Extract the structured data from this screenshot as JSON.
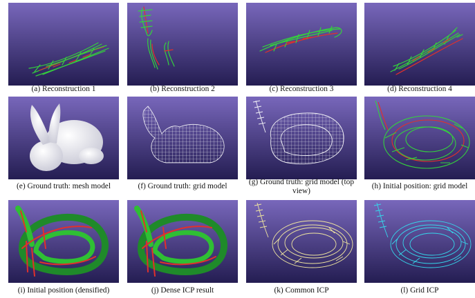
{
  "figure": {
    "panels": [
      {
        "caption": "(a) Reconstruction 1",
        "content": "reconstruction-green-red-grid"
      },
      {
        "caption": "(b) Reconstruction 2",
        "content": "reconstruction-green-red-grid"
      },
      {
        "caption": "(c) Reconstruction 3",
        "content": "reconstruction-green-red-grid"
      },
      {
        "caption": "(d) Reconstruction 4",
        "content": "reconstruction-green-red-grid"
      },
      {
        "caption": "(e) Ground truth: mesh model",
        "content": "white-bunny-mesh"
      },
      {
        "caption": "(f) Ground truth: grid model",
        "content": "white-bunny-grid"
      },
      {
        "caption": "(g) Ground truth: grid model (top view)",
        "content": "white-bunny-grid-top"
      },
      {
        "caption": "(h) Initial position: grid model",
        "content": "green-red-grid-initial"
      },
      {
        "caption": "(i) Initial position (densified)",
        "content": "dense-green-red"
      },
      {
        "caption": "(j) Dense ICP result",
        "content": "dense-green-red"
      },
      {
        "caption": "(k) Common ICP",
        "content": "yellow-grid-result"
      },
      {
        "caption": "(l) Grid ICP",
        "content": "cyan-grid-result"
      }
    ],
    "colors": {
      "background_top": "#7566b8",
      "background_bottom": "#231c50",
      "green": "#34d23c",
      "red": "#e2302a",
      "white": "#f4f4f8",
      "yellow": "#f1e7a0",
      "cyan": "#35d8ec"
    }
  }
}
